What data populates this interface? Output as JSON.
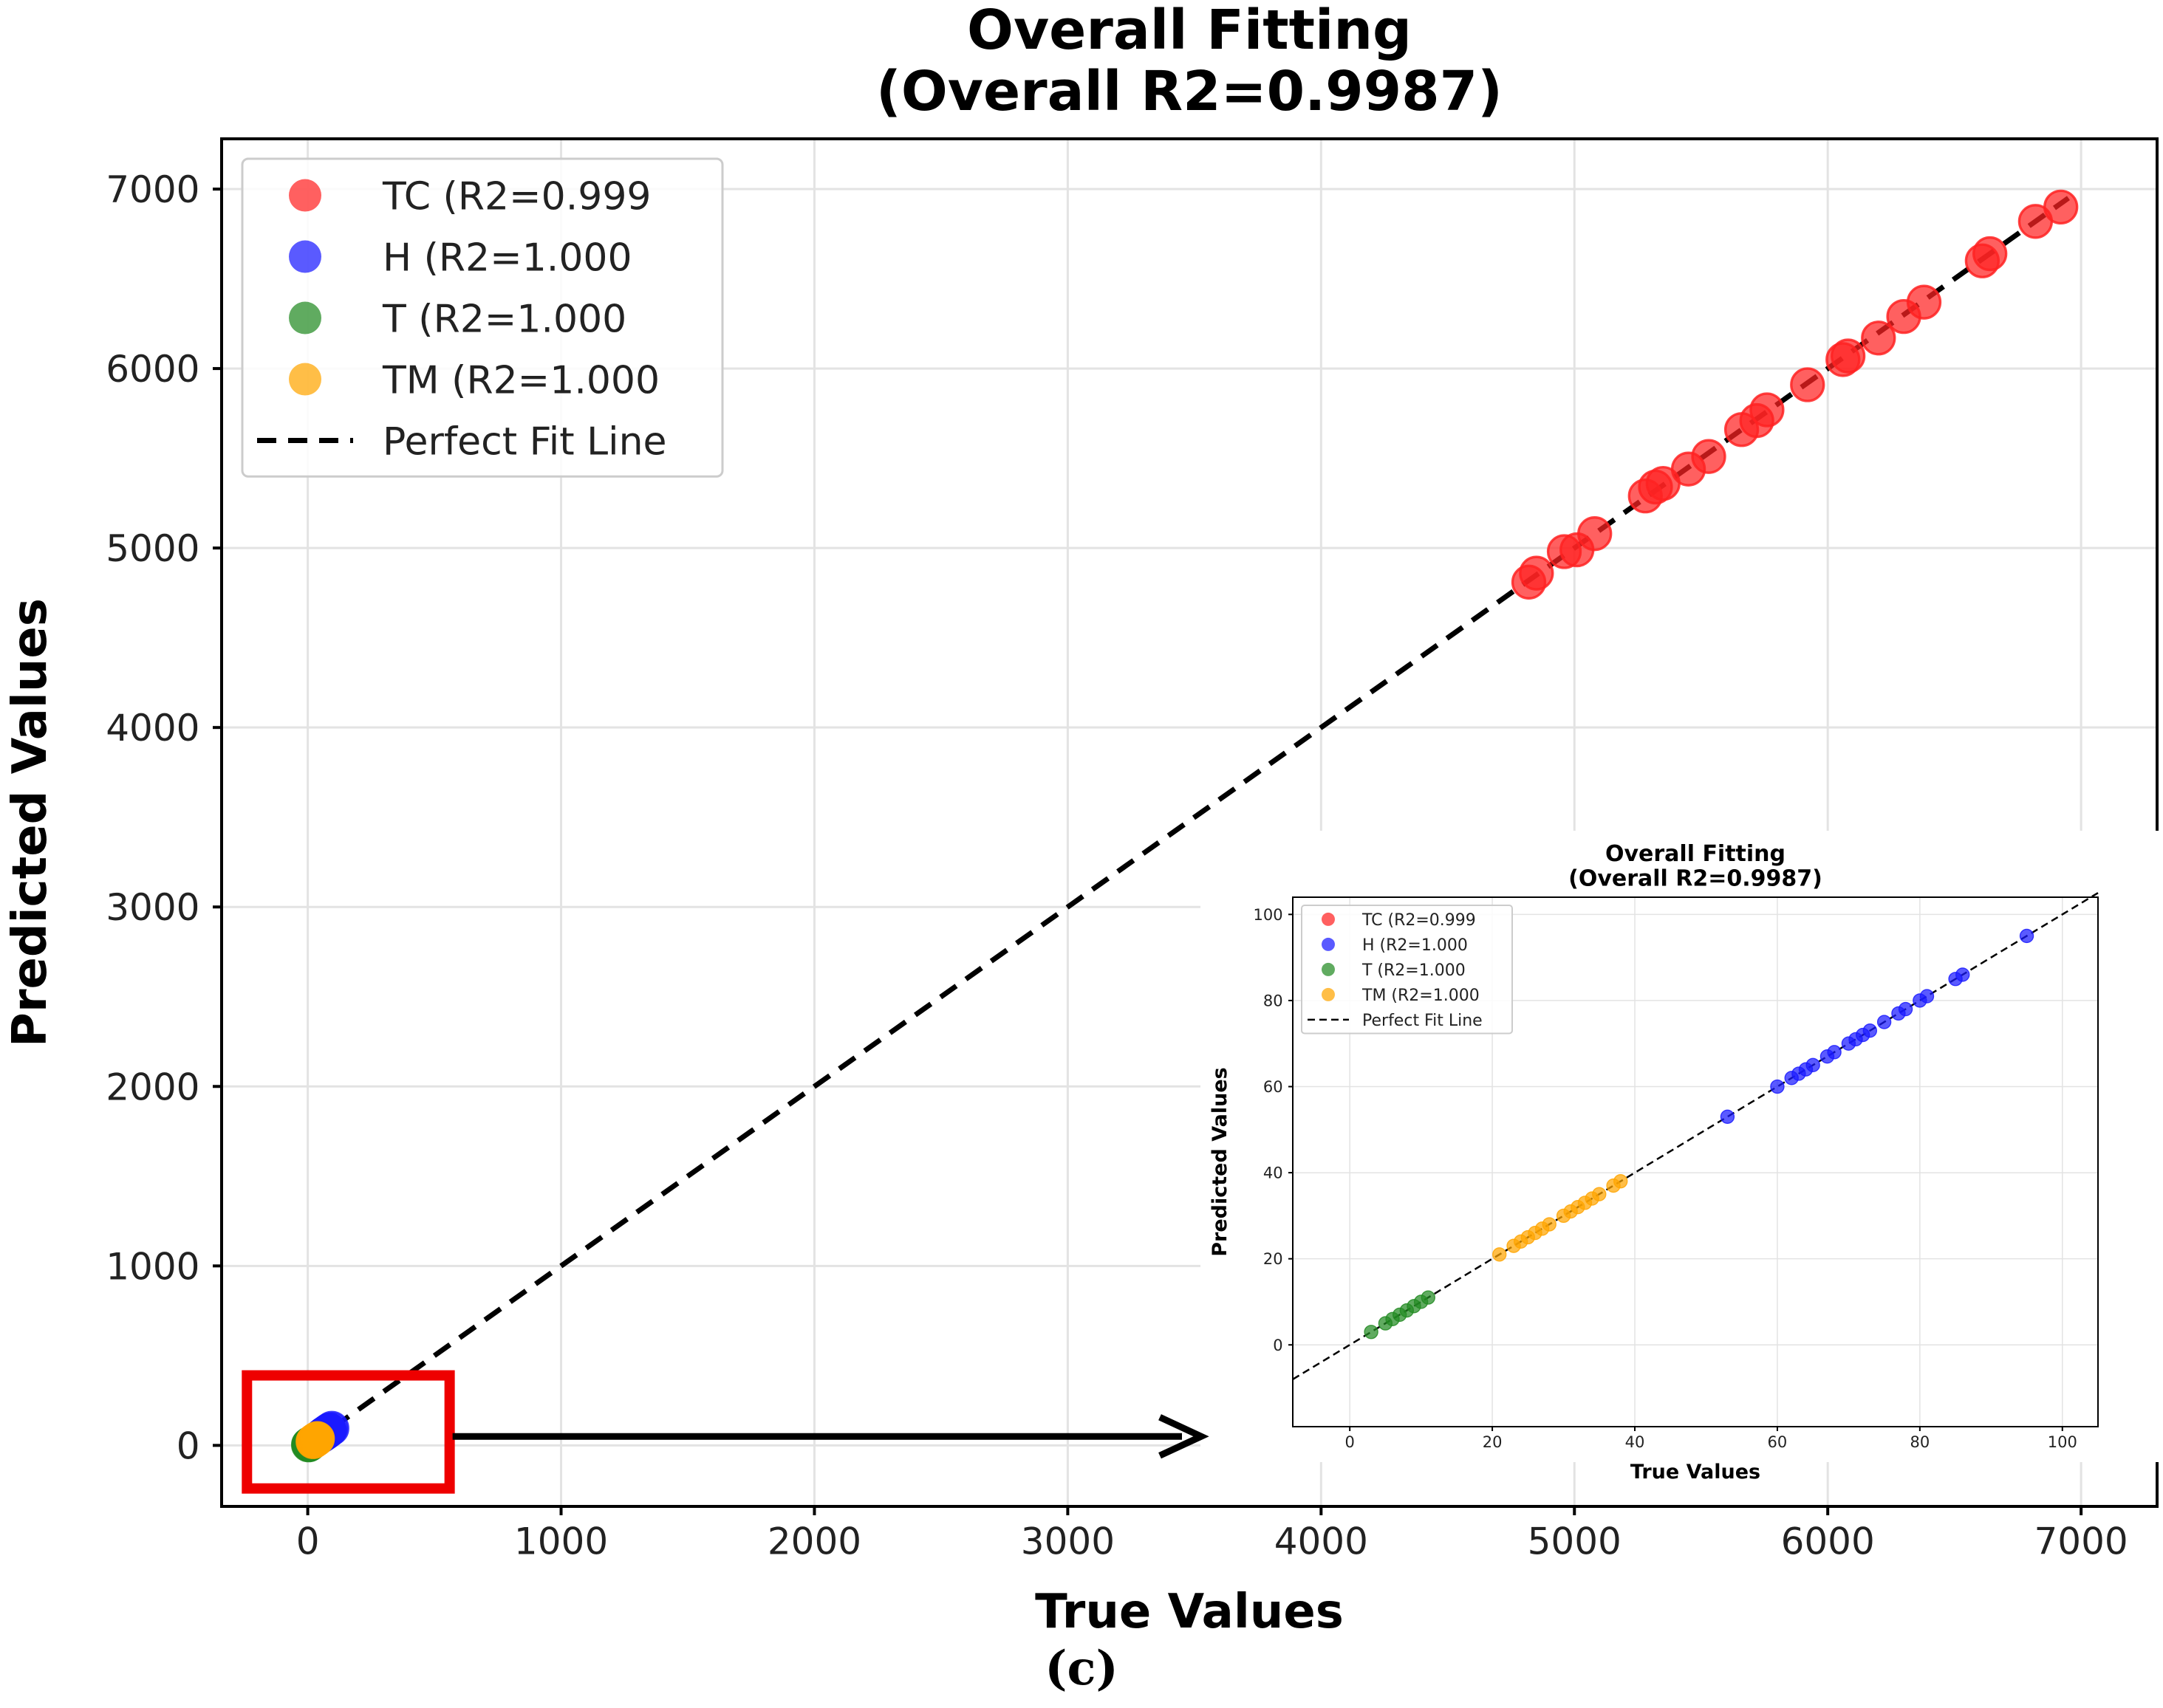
{
  "chart_data": [
    {
      "type": "scatter",
      "title": "Overall Fitting\n(Overall R2=0.9987)",
      "xlabel": "True Values",
      "ylabel": "Predicted Values",
      "xlim": [
        -340,
        7300
      ],
      "ylim": [
        -340,
        7280
      ],
      "xticks": [
        0,
        1000,
        2000,
        3000,
        4000,
        5000,
        6000,
        7000
      ],
      "xtick_labels": [
        "0",
        "1000",
        "2000",
        "3000",
        "4000",
        "5000",
        "6000",
        "7000"
      ],
      "yticks": [
        0,
        1000,
        2000,
        3000,
        4000,
        5000,
        6000,
        7000
      ],
      "ytick_labels": [
        "0",
        "1000",
        "2000",
        "3000",
        "4000",
        "5000",
        "6000",
        "7000"
      ],
      "grid": true,
      "legend_position": "top-left",
      "series": [
        {
          "name": "TC (R2=0.999",
          "color": "#ff2222",
          "x": [
            4820,
            4850,
            4960,
            5010,
            5080,
            5280,
            5320,
            5350,
            5450,
            5530,
            5660,
            5720,
            5760,
            5920,
            6060,
            6080,
            6200,
            6300,
            6380,
            6610,
            6640,
            6820,
            6920
          ],
          "y": [
            4810,
            4860,
            4980,
            4990,
            5080,
            5290,
            5340,
            5360,
            5440,
            5510,
            5660,
            5710,
            5770,
            5910,
            6050,
            6070,
            6170,
            6290,
            6370,
            6600,
            6640,
            6820,
            6900
          ]
        },
        {
          "name": "H (R2=1.000",
          "color": "#1a1aff",
          "x": [
            53,
            60,
            62,
            63,
            64,
            65,
            67,
            68,
            70,
            71,
            72,
            73,
            75,
            77,
            78,
            80,
            81,
            85,
            86,
            95
          ],
          "y": [
            53,
            60,
            62,
            63,
            64,
            65,
            67,
            68,
            70,
            71,
            72,
            73,
            75,
            77,
            78,
            80,
            81,
            85,
            86,
            95
          ]
        },
        {
          "name": "T (R2=1.000",
          "color": "#228b22",
          "x": [
            3,
            5,
            6,
            7,
            8,
            9,
            10,
            11
          ],
          "y": [
            3,
            5,
            6,
            7,
            8,
            9,
            10,
            11
          ]
        },
        {
          "name": "TM (R2=1.000",
          "color": "#ffa500",
          "x": [
            21,
            23,
            24,
            25,
            26,
            27,
            28,
            30,
            31,
            32,
            33,
            34,
            35,
            37,
            38
          ],
          "y": [
            21,
            23,
            24,
            25,
            26,
            27,
            28,
            30,
            31,
            32,
            33,
            34,
            35,
            37,
            38
          ]
        }
      ],
      "reference_line": {
        "name": "Perfect Fit Line",
        "style": "dashed",
        "color": "#000000",
        "x": [
          0,
          6950
        ],
        "y": [
          0,
          6950
        ]
      }
    },
    {
      "type": "scatter",
      "title": "Overall Fitting\n(Overall R2=0.9987)",
      "xlabel": "True Values",
      "ylabel": "Predicted Values",
      "xlim": [
        -8,
        105
      ],
      "ylim": [
        -19,
        104
      ],
      "xticks": [
        0,
        20,
        40,
        60,
        80,
        100
      ],
      "xtick_labels": [
        "0",
        "20",
        "40",
        "60",
        "80",
        "100"
      ],
      "yticks": [
        0,
        20,
        40,
        60,
        80,
        100
      ],
      "ytick_labels": [
        "0",
        "20",
        "40",
        "60",
        "80",
        "100"
      ],
      "grid": true,
      "legend_position": "top-left",
      "series": [
        {
          "name": "TC (R2=0.999",
          "color": "#ff2222",
          "x": [],
          "y": []
        },
        {
          "name": "H (R2=1.000",
          "color": "#1a1aff",
          "x": [
            53,
            60,
            62,
            63,
            64,
            65,
            67,
            68,
            70,
            71,
            72,
            73,
            75,
            77,
            78,
            80,
            81,
            85,
            86,
            95
          ],
          "y": [
            53,
            60,
            62,
            63,
            64,
            65,
            67,
            68,
            70,
            71,
            72,
            73,
            75,
            77,
            78,
            80,
            81,
            85,
            86,
            95
          ]
        },
        {
          "name": "T (R2=1.000",
          "color": "#228b22",
          "x": [
            3,
            5,
            6,
            7,
            8,
            9,
            10,
            11
          ],
          "y": [
            3,
            5,
            6,
            7,
            8,
            9,
            10,
            11
          ]
        },
        {
          "name": "TM (R2=1.000",
          "color": "#ffa500",
          "x": [
            21,
            23,
            24,
            25,
            26,
            27,
            28,
            30,
            31,
            32,
            33,
            34,
            35,
            37,
            38
          ],
          "y": [
            21,
            23,
            24,
            25,
            26,
            27,
            28,
            30,
            31,
            32,
            33,
            34,
            35,
            37,
            38
          ]
        }
      ],
      "reference_line": {
        "name": "Perfect Fit Line",
        "style": "dashed",
        "color": "#000000",
        "x": [
          -8,
          105
        ],
        "y": [
          -8,
          105
        ]
      }
    }
  ],
  "annotation": {
    "highlight_color": "#ee0000",
    "arrow_color": "#000000"
  },
  "caption": "(c)"
}
